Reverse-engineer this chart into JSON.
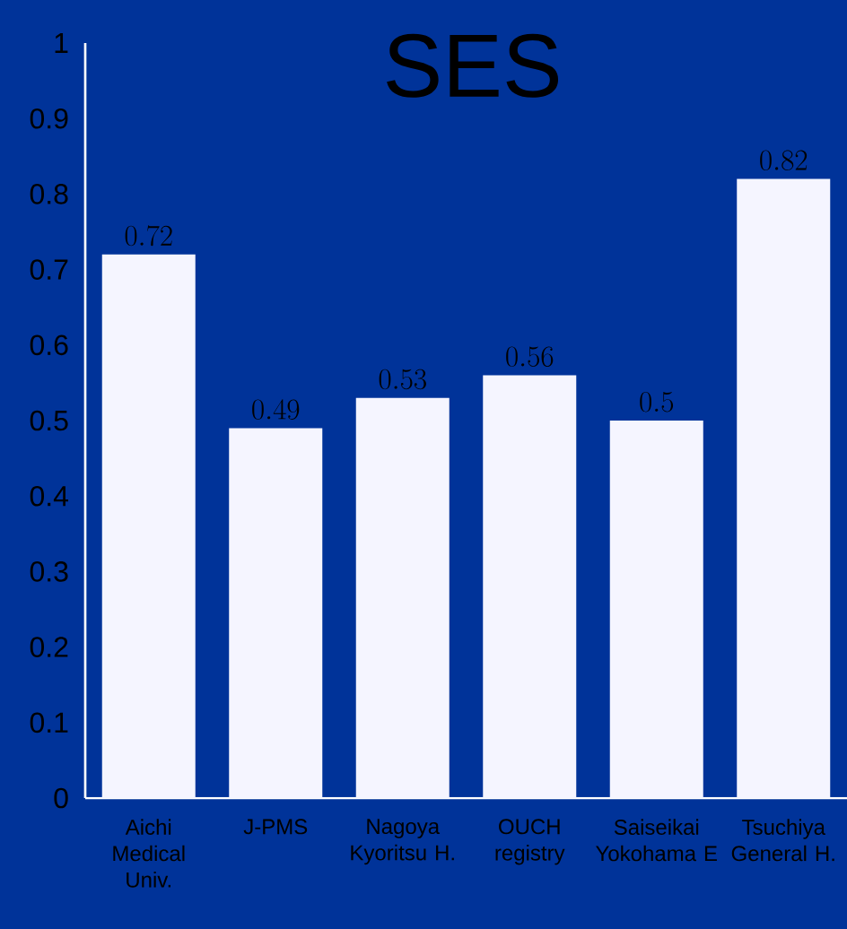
{
  "chart_data": {
    "type": "bar",
    "title": "SES",
    "categories": [
      "Aichi Medical Univ.",
      "J-PMS",
      "Nagoya Kyoritsu H.",
      "OUCH registry",
      "Saiseikai Yokohama E",
      "Tsuchiya General H."
    ],
    "values": [
      0.72,
      0.49,
      0.53,
      0.56,
      0.5,
      0.82
    ],
    "color": "#f5f5ff",
    "ylim": [
      0,
      1
    ],
    "yticks": [
      0,
      0.1,
      0.2,
      0.3,
      0.4,
      0.5,
      0.6,
      0.7,
      0.8,
      0.9,
      1
    ],
    "data_labels": true
  }
}
